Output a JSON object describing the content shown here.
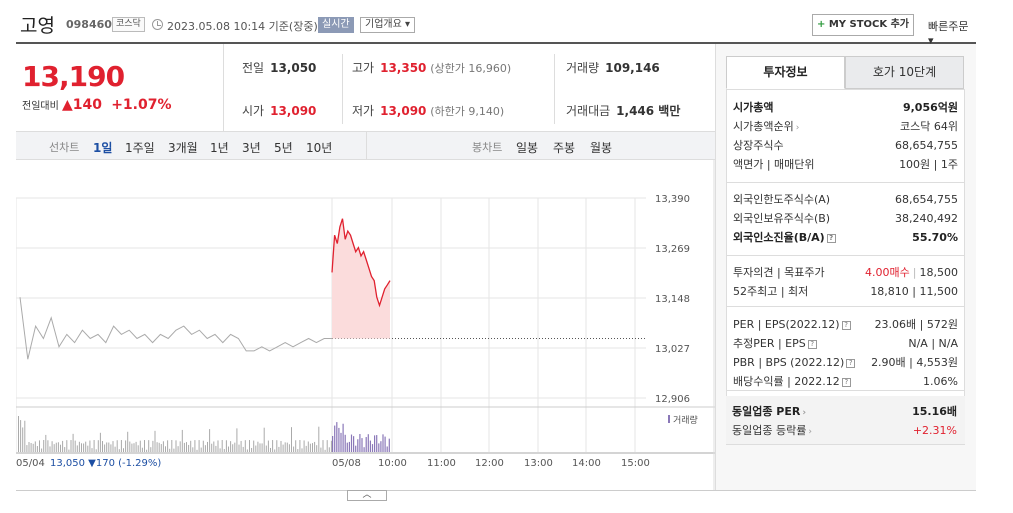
{
  "header": {
    "stock_name": "고영",
    "stock_code": "098460",
    "market": "코스닥",
    "datetime": "2023.05.08 10:14 기준(장중)",
    "realtime_label": "실시간",
    "company_label": "기업개요 ▾",
    "mystock_label": "MY STOCK 추가",
    "quick_order_label": "빠른주문 ▾"
  },
  "price": {
    "current": "13,190",
    "change_label": "전일대비",
    "change_amount": "▲140",
    "change_percent": "+1.07%"
  },
  "details": {
    "prev_close_label": "전일",
    "prev_close": "13,050",
    "high_label": "고가",
    "high": "13,350",
    "upper_limit": "(상한가 16,960)",
    "volume_label": "거래량",
    "volume": "109,146",
    "open_label": "시가",
    "open": "13,090",
    "low_label": "저가",
    "low": "13,090",
    "lower_limit": "(하한가 9,140)",
    "amount_label": "거래대금",
    "amount": "1,446 백만"
  },
  "tabbar": {
    "line_label": "선차트",
    "periods": [
      "1일",
      "1주일",
      "3개월",
      "1년",
      "3년",
      "5년",
      "10년"
    ],
    "active_period": "1일",
    "candle_label": "봉차트",
    "candles": [
      "일봉",
      "주봉",
      "월봉"
    ]
  },
  "chart_data": {
    "type": "line",
    "y_ticks": [
      "13,390",
      "13,269",
      "13,148",
      "13,027",
      "12,906"
    ],
    "x_ticks": [
      "05/04",
      "05/08",
      "10:00",
      "11:00",
      "12:00",
      "13:00",
      "14:00",
      "15:00"
    ],
    "prev_close": 13050,
    "ylim": [
      12906,
      13390
    ],
    "prev_day_summary": "13,050 ▼170 (-1.29%)",
    "legend_volume": "거래량",
    "prev_day": [
      13150,
      13000,
      13080,
      13050,
      13100,
      13030,
      13060,
      13040,
      13070,
      13050,
      13060,
      13040,
      13080,
      13060,
      13070,
      13050,
      13060,
      13040,
      13060,
      13050,
      13070,
      13080,
      13060,
      13070,
      13050,
      13060,
      13040,
      13060,
      13050,
      13020,
      13020,
      13030,
      13020,
      13030,
      13040,
      13030,
      13040,
      13050,
      13040,
      13050,
      13050
    ],
    "today": [
      13210,
      13300,
      13280,
      13320,
      13340,
      13290,
      13310,
      13300,
      13280,
      13260,
      13270,
      13250,
      13260,
      13240,
      13220,
      13200,
      13190,
      13150,
      13130,
      13150,
      13170,
      13180,
      13190
    ]
  },
  "right_panel": {
    "tabs": [
      "투자정보",
      "호가 10단계"
    ],
    "rows": [
      {
        "k": "시가총액",
        "v": "9,056억원",
        "bold": true
      },
      {
        "k": "시가총액순위",
        "v": "코스닥 64위"
      },
      {
        "k": "상장주식수",
        "v": "68,654,755"
      },
      {
        "k": "액면가 | 매매단위",
        "v": "100원 | 1주"
      },
      {
        "k": "외국인한도주식수(A)",
        "v": "68,654,755"
      },
      {
        "k": "외국인보유주식수(B)",
        "v": "38,240,492"
      },
      {
        "k": "외국인소진율(B/A)",
        "v": "55.70%",
        "bold": true
      },
      {
        "k": "투자의견 | 목표주가",
        "v_red": "4.00매수",
        "v": "18,500"
      },
      {
        "k": "52주최고 | 최저",
        "v": "18,810 | 11,500"
      },
      {
        "k": "PER | EPS(2022.12)",
        "v": "23.06배 | 572원"
      },
      {
        "k": "추정PER | EPS",
        "v": "N/A | N/A"
      },
      {
        "k": "PBR | BPS (2022.12)",
        "v": "2.90배 | 4,553원"
      },
      {
        "k": "배당수익률 | 2022.12",
        "v": "1.06%"
      },
      {
        "k": "동일업종 PER",
        "v": "15.16배",
        "bold": true
      },
      {
        "k": "동일업종 등락률",
        "v_red_only": "+2.31%"
      }
    ]
  },
  "expand_label": "︿"
}
